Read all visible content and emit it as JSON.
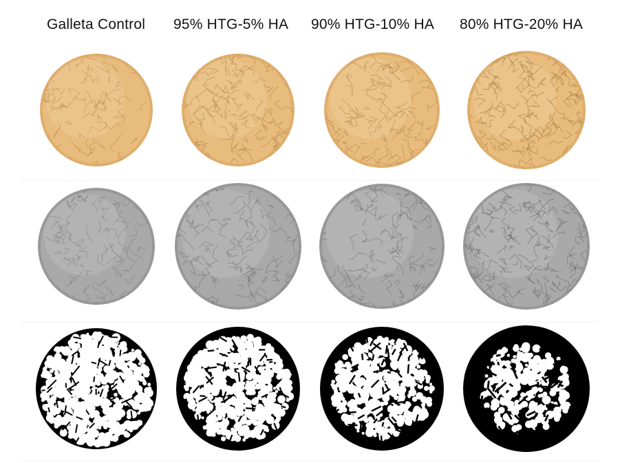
{
  "columns": [
    {
      "label": "Galleta Control",
      "crack": 0.18,
      "dark": 0.25
    },
    {
      "label": "95% HTG-5%  HA",
      "crack": 0.4,
      "dark": 0.42
    },
    {
      "label": "90% HTG-10% HA",
      "crack": 0.38,
      "dark": 0.55
    },
    {
      "label": "80% HTG-20% HA",
      "crack": 0.6,
      "dark": 0.82
    }
  ],
  "rows": [
    {
      "name": "color",
      "fill": "#e8bc7c",
      "edge": "#d9a564",
      "crackColor": "#a87c40"
    },
    {
      "name": "grayscale",
      "fill": "#a9a9a9",
      "edge": "#8e8e8e",
      "crackColor": "#6a6a6a"
    },
    {
      "name": "binary",
      "fill": "#ffffff",
      "edge": "#000000",
      "crackColor": "#000000"
    }
  ]
}
